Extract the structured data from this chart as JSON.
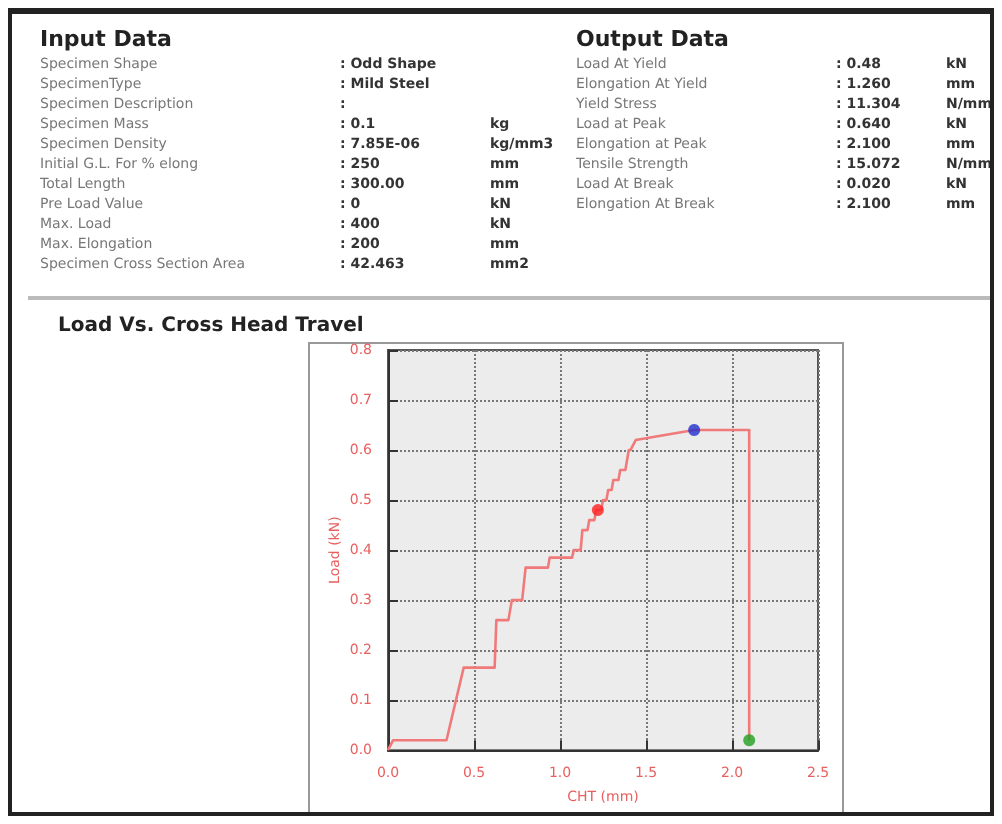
{
  "chart_data": [
    {
      "type": "other",
      "title": "Input Data",
      "annotations": [
        "Specimen Shape\t: Odd Shape\t",
        "SpecimenType\t: Mild Steel\t",
        "Specimen Description\t:\t",
        "Specimen Mass\t: 0.1\tkg",
        "Specimen Density\t: 7.85E-06\tkg/mm3",
        "Initial G.L. For % elong\t: 250\tmm",
        "Total Length\t: 300.00\tmm",
        "Pre Load Value\t: 0\tkN",
        "Max. Load\t: 400\tkN",
        "Max. Elongation\t: 200\tmm",
        "Specimen Cross Section Area\t: 42.463\tmm2"
      ]
    },
    {
      "type": "other",
      "title": "Output Data",
      "annotations": [
        "Load At Yield\t: 0.48\tkN",
        "Elongation At Yield\t: 1.260\tmm",
        "Yield Stress\t: 11.304\tN/mm",
        "Load at Peak\t: 0.640\tkN",
        "Elongation at Peak\t: 2.100\tmm",
        "Tensile Strength\t: 15.072\tN/mm",
        "Load At Break\t: 0.020\tkN",
        "Elongation At Break\t: 2.100\tmm"
      ]
    },
    {
      "type": "line",
      "title": "Load Vs. Cross Head Travel",
      "xlabel": "CHT (mm)",
      "ylabel": "Load (kN)",
      "xlim": [
        0,
        2.5
      ],
      "ylim": [
        0,
        0.8
      ],
      "xticks": [
        {
          "value": 0,
          "label": "0.0"
        },
        {
          "value": 0.5,
          "label": "0.5"
        },
        {
          "value": 1,
          "label": "1.0"
        },
        {
          "value": 1.5,
          "label": "1.5"
        },
        {
          "value": 2,
          "label": "2.0"
        },
        {
          "value": 2.5,
          "label": "2.5"
        }
      ],
      "yticks": [
        {
          "value": 0,
          "label": "0.0"
        },
        {
          "value": 0.1,
          "label": "0.1"
        },
        {
          "value": 0.2,
          "label": "0.2"
        },
        {
          "value": 0.3,
          "label": "0.3"
        },
        {
          "value": 0.4,
          "label": "0.4"
        },
        {
          "value": 0.5,
          "label": "0.5"
        },
        {
          "value": 0.6,
          "label": "0.6"
        },
        {
          "value": 0.7,
          "label": "0.7"
        },
        {
          "value": 0.8,
          "label": "0.8"
        }
      ],
      "grid": true,
      "series": [
        {
          "type": "line",
          "color": "#f07a7a",
          "marker": "none",
          "x": [
            0,
            0.03,
            0.34,
            0.44,
            0.62,
            0.63,
            0.7,
            0.72,
            0.78,
            0.8,
            0.93,
            0.94,
            1.07,
            1.08,
            1.12,
            1.13,
            1.16,
            1.17,
            1.2,
            1.21,
            1.24,
            1.25,
            1.27,
            1.28,
            1.3,
            1.31,
            1.34,
            1.35,
            1.38,
            1.4,
            1.41,
            1.44,
            1.78,
            2.1,
            2.1
          ],
          "values": [
            0,
            0.02,
            0.02,
            0.165,
            0.165,
            0.26,
            0.26,
            0.3,
            0.3,
            0.365,
            0.365,
            0.385,
            0.385,
            0.4,
            0.4,
            0.44,
            0.44,
            0.46,
            0.46,
            0.48,
            0.48,
            0.5,
            0.5,
            0.52,
            0.52,
            0.54,
            0.54,
            0.56,
            0.56,
            0.6,
            0.6,
            0.62,
            0.64,
            0.64,
            0.02
          ]
        },
        {
          "type": "scatter",
          "color": "#ff2020",
          "marker": "circle",
          "x": [
            1.22
          ],
          "values": [
            0.48
          ]
        },
        {
          "type": "scatter",
          "color": "#2030d0",
          "marker": "circle",
          "x": [
            1.78
          ],
          "values": [
            0.64
          ]
        },
        {
          "type": "scatter",
          "color": "#20a020",
          "marker": "circle",
          "x": [
            2.1
          ],
          "values": [
            0.02
          ]
        }
      ]
    }
  ]
}
